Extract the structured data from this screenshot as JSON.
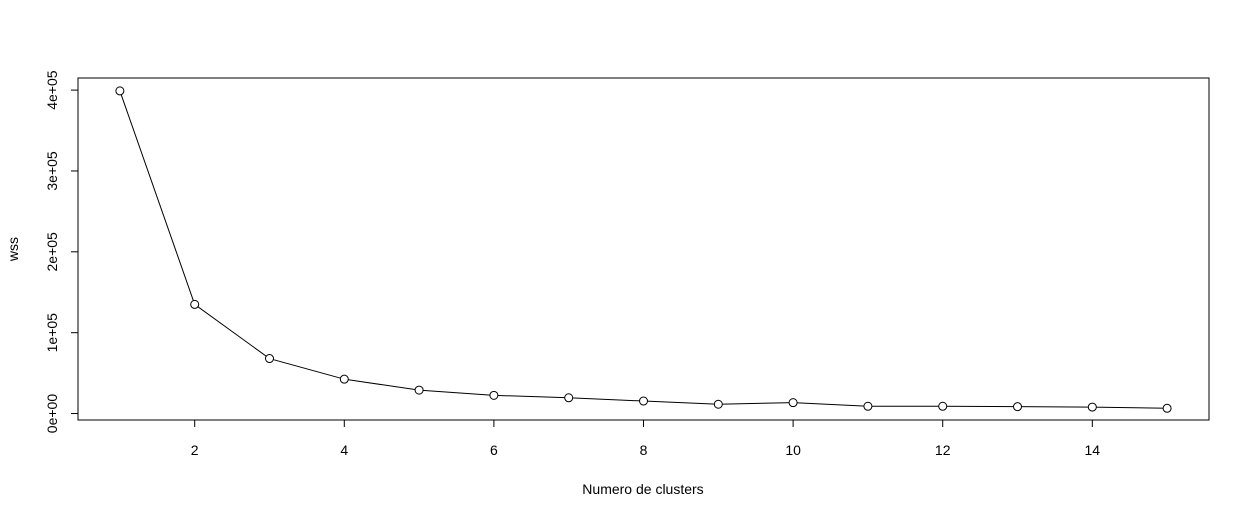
{
  "chart_data": {
    "type": "line",
    "title": "",
    "xlabel": "Numero de clusters",
    "ylabel": "wss",
    "x": [
      1,
      2,
      3,
      4,
      5,
      6,
      7,
      8,
      9,
      10,
      11,
      12,
      13,
      14,
      15
    ],
    "series": [
      {
        "values": [
          399000,
          135000,
          68000,
          42500,
          29000,
          22500,
          19500,
          15500,
          11500,
          13500,
          9000,
          9000,
          8500,
          8000,
          6500
        ]
      }
    ],
    "xlim": [
      0.44,
      15.56
    ],
    "ylim": [
      -7980,
      414960
    ],
    "x_ticks": [
      2,
      4,
      6,
      8,
      10,
      12,
      14
    ],
    "x_tick_labels": [
      "2",
      "4",
      "6",
      "8",
      "10",
      "12",
      "14"
    ],
    "y_ticks": [
      0,
      100000,
      200000,
      300000,
      400000
    ],
    "y_tick_labels": [
      "0e+00",
      "1e+05",
      "2e+05",
      "3e+05",
      "4e+05"
    ],
    "marker": "open-circle",
    "line_color": "#000000",
    "grid": false,
    "legend": "none"
  }
}
